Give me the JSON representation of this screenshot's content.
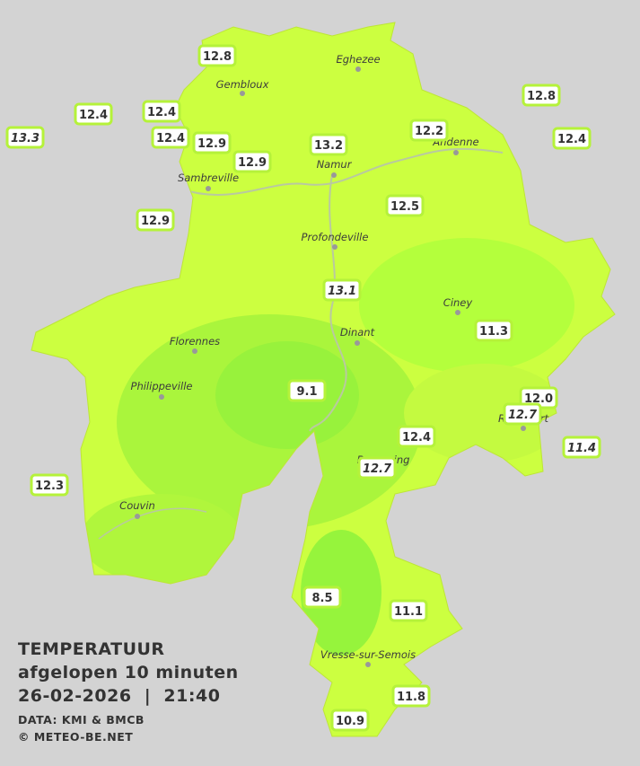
{
  "title": [
    "TEMPERATUUR",
    "afgelopen 10 minuten",
    "26-02-2026  |  21:40"
  ],
  "credits": [
    "DATA: KMI & BMCB",
    "© METEO-BE.NET"
  ],
  "cities": [
    "Eghezee",
    "Gembloux",
    "Andenne",
    "Namur",
    "Sambreville",
    "Profondeville",
    "Ciney",
    "Dinant",
    "Florennes",
    "Philippeville",
    "Rochefort",
    "Beauraing",
    "Couvin",
    "Vresse-sur-Semois"
  ],
  "readings": [
    "12.8",
    "12.4",
    "12.4",
    "13.3",
    "12.4",
    "12.9",
    "12.9",
    "13.2",
    "12.2",
    "12.8",
    "12.4",
    "12.5",
    "12.9",
    "13.1",
    "11.3",
    "9.1",
    "12.0",
    "12.7",
    "12.4",
    "11.4",
    "12.7",
    "12.3",
    "8.5",
    "11.1",
    "11.8",
    "10.9"
  ]
}
